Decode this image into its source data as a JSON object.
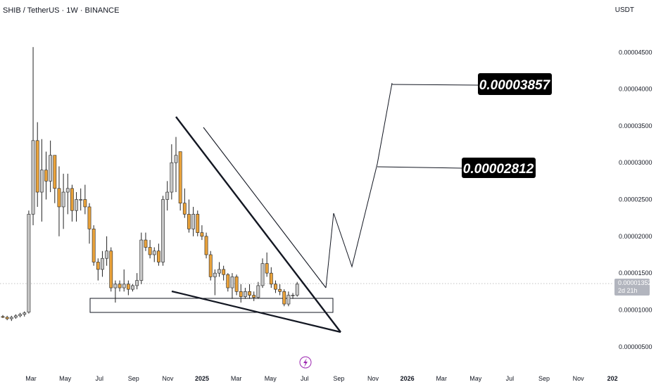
{
  "header": {
    "title": "SHIB / TetherUS · 1W · BINANCE",
    "currency": "USDT"
  },
  "current_price": {
    "value": "0.00001352",
    "countdown": "2d 21h"
  },
  "targets": [
    {
      "label": "0.00003857"
    },
    {
      "label": "0.00002812"
    }
  ],
  "colors": {
    "bull": "#c8c8c8",
    "bear": "#e9a23b",
    "wick": "#222222",
    "label_bg": "#000000",
    "price_tag": "#b2b5be",
    "icon": "#9c27b0"
  },
  "icon": "lightning-icon",
  "chart_data": {
    "type": "candlestick",
    "title": "SHIB / TetherUS · 1W · BINANCE",
    "y_unit": "USDT",
    "ylim": [
      4.5e-06,
      4.77e-05
    ],
    "y_ticks": [
      "0.00004500",
      "0.00004000",
      "0.00003500",
      "0.00003000",
      "0.00002500",
      "0.00002000",
      "0.00001500",
      "0.00001000",
      "0.00000500"
    ],
    "x_ticks": [
      {
        "label": "Mar",
        "bold": false
      },
      {
        "label": "May",
        "bold": false
      },
      {
        "label": "Jul",
        "bold": false
      },
      {
        "label": "Sep",
        "bold": false
      },
      {
        "label": "Nov",
        "bold": false
      },
      {
        "label": "2025",
        "bold": true
      },
      {
        "label": "Mar",
        "bold": false
      },
      {
        "label": "May",
        "bold": false
      },
      {
        "label": "Jul",
        "bold": false
      },
      {
        "label": "Sep",
        "bold": false
      },
      {
        "label": "Nov",
        "bold": false
      },
      {
        "label": "2026",
        "bold": true
      },
      {
        "label": "Mar",
        "bold": false
      },
      {
        "label": "May",
        "bold": false
      },
      {
        "label": "Jul",
        "bold": false
      },
      {
        "label": "Sep",
        "bold": false
      },
      {
        "label": "Nov",
        "bold": false
      },
      {
        "label": "202",
        "bold": true
      }
    ],
    "candles": [
      [
        9.1,
        9.3,
        8.9,
        9.0
      ],
      [
        9.0,
        9.2,
        8.6,
        8.8
      ],
      [
        8.8,
        9.2,
        8.5,
        9.0
      ],
      [
        9.0,
        9.4,
        8.8,
        9.2
      ],
      [
        9.2,
        9.6,
        9.0,
        9.4
      ],
      [
        9.4,
        9.8,
        9.1,
        9.6
      ],
      [
        9.7,
        23.5,
        9.5,
        23.0
      ],
      [
        23.0,
        45.7,
        21.5,
        33.0
      ],
      [
        33.0,
        35.5,
        24.0,
        26.0
      ],
      [
        26.0,
        33.2,
        22.0,
        29.0
      ],
      [
        29.0,
        31.5,
        25.0,
        27.5
      ],
      [
        27.5,
        33.0,
        26.0,
        31.0
      ],
      [
        31.0,
        31.0,
        24.5,
        26.5
      ],
      [
        26.5,
        29.5,
        20.0,
        24.0
      ],
      [
        24.0,
        28.5,
        21.0,
        26.0
      ],
      [
        26.0,
        28.5,
        23.0,
        26.5
      ],
      [
        26.5,
        27.0,
        22.0,
        23.5
      ],
      [
        23.5,
        26.0,
        22.0,
        25.0
      ],
      [
        25.0,
        26.5,
        23.5,
        25.0
      ],
      [
        25.0,
        27.0,
        23.0,
        24.0
      ],
      [
        24.0,
        24.5,
        19.0,
        21.0
      ],
      [
        21.0,
        21.5,
        16.0,
        16.5
      ],
      [
        16.5,
        17.0,
        14.0,
        15.5
      ],
      [
        15.5,
        18.0,
        14.5,
        17.0
      ],
      [
        17.0,
        20.0,
        16.0,
        18.0
      ],
      [
        18.0,
        18.5,
        12.5,
        13.0
      ],
      [
        13.0,
        14.0,
        11.0,
        13.5
      ],
      [
        13.5,
        14.0,
        12.5,
        13.0
      ],
      [
        13.0,
        15.5,
        12.5,
        13.5
      ],
      [
        13.5,
        14.0,
        12.0,
        12.8
      ],
      [
        12.8,
        13.5,
        12.5,
        13.3
      ],
      [
        13.3,
        15.0,
        12.8,
        14.0
      ],
      [
        14.0,
        20.5,
        13.5,
        19.5
      ],
      [
        19.5,
        20.5,
        18.0,
        18.5
      ],
      [
        18.5,
        19.5,
        17.0,
        17.5
      ],
      [
        17.5,
        18.5,
        16.5,
        18.0
      ],
      [
        18.0,
        19.0,
        16.0,
        16.5
      ],
      [
        16.5,
        25.5,
        16.0,
        25.0
      ],
      [
        25.0,
        27.5,
        23.5,
        26.0
      ],
      [
        26.0,
        32.5,
        25.0,
        30.0
      ],
      [
        30.0,
        33.5,
        26.0,
        31.0
      ],
      [
        31.5,
        31.5,
        23.5,
        24.5
      ],
      [
        24.5,
        26.5,
        22.5,
        23.0
      ],
      [
        23.0,
        25.0,
        20.5,
        21.0
      ],
      [
        21.0,
        24.0,
        20.0,
        23.0
      ],
      [
        23.0,
        23.5,
        20.0,
        20.5
      ],
      [
        20.5,
        21.5,
        19.5,
        20.0
      ],
      [
        20.0,
        20.5,
        17.0,
        17.5
      ],
      [
        17.5,
        18.0,
        14.0,
        14.5
      ],
      [
        14.5,
        15.5,
        12.0,
        15.0
      ],
      [
        15.0,
        16.5,
        14.5,
        15.5
      ],
      [
        15.5,
        16.0,
        14.0,
        14.8
      ],
      [
        14.8,
        15.0,
        12.5,
        13.0
      ],
      [
        13.0,
        15.0,
        11.5,
        14.5
      ],
      [
        14.5,
        14.8,
        12.0,
        12.5
      ],
      [
        12.5,
        13.5,
        11.0,
        11.8
      ],
      [
        11.8,
        13.0,
        11.5,
        12.5
      ],
      [
        12.5,
        13.5,
        11.5,
        12.0
      ],
      [
        12.0,
        12.5,
        11.2,
        11.7
      ],
      [
        11.7,
        13.8,
        11.5,
        13.3
      ],
      [
        13.3,
        17.0,
        13.0,
        16.3
      ],
      [
        16.3,
        17.8,
        14.5,
        15.0
      ],
      [
        15.0,
        15.8,
        13.0,
        13.5
      ],
      [
        13.5,
        14.0,
        12.3,
        12.8
      ],
      [
        12.8,
        13.5,
        12.0,
        12.5
      ],
      [
        12.5,
        12.8,
        10.5,
        10.8
      ],
      [
        10.8,
        12.5,
        10.5,
        12.0
      ],
      [
        12.0,
        12.3,
        11.5,
        12.0
      ],
      [
        12.0,
        13.8,
        11.8,
        13.5
      ]
    ],
    "annotations": {
      "targets": [
        {
          "label": "0.00003857",
          "value": 3.857e-05
        },
        {
          "label": "0.00002812",
          "value": 2.812e-05
        }
      ],
      "current_price": "0.00001352"
    },
    "grid": false
  }
}
